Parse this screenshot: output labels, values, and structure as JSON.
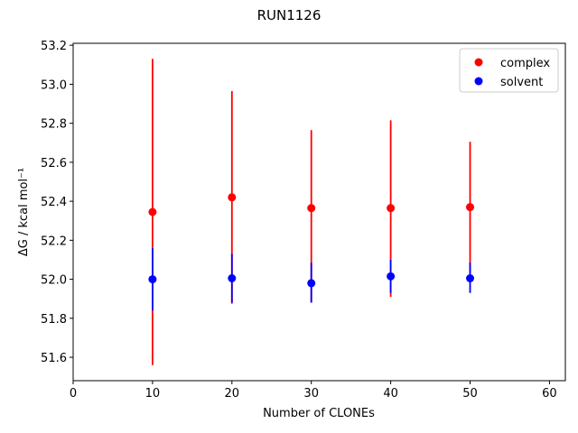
{
  "chart_data": {
    "type": "scatter",
    "title": "RUN1126",
    "xlabel": "Number of CLONEs",
    "ylabel": "ΔG / kcal mol⁻¹",
    "xlim": [
      0,
      62
    ],
    "ylim": [
      51.48,
      53.21
    ],
    "xticks": [
      0,
      10,
      20,
      30,
      40,
      50,
      60
    ],
    "yticks": [
      51.6,
      51.8,
      52.0,
      52.2,
      52.4,
      52.6,
      52.8,
      53.0,
      53.2
    ],
    "xtick_labels": [
      "0",
      "10",
      "20",
      "30",
      "40",
      "50",
      "60"
    ],
    "ytick_labels": [
      "51.6",
      "51.8",
      "52.0",
      "52.2",
      "52.4",
      "52.6",
      "52.8",
      "53.0",
      "53.2"
    ],
    "grid": false,
    "legend": {
      "location": "upper right",
      "entries": [
        "complex",
        "solvent"
      ]
    },
    "series": [
      {
        "name": "complex",
        "color": "#ff0000",
        "x": [
          10,
          20,
          30,
          40,
          50
        ],
        "y": [
          52.345,
          52.42,
          52.365,
          52.365,
          52.37
        ],
        "yerr_low": [
          51.56,
          51.875,
          51.88,
          51.91,
          52.03
        ],
        "yerr_high": [
          53.13,
          52.965,
          52.765,
          52.815,
          52.705
        ]
      },
      {
        "name": "solvent",
        "color": "#0000ff",
        "x": [
          10,
          20,
          30,
          40,
          50
        ],
        "y": [
          52.0,
          52.005,
          51.98,
          52.015,
          52.005
        ],
        "yerr_low": [
          51.84,
          51.88,
          51.88,
          51.93,
          51.93
        ],
        "yerr_high": [
          52.16,
          52.13,
          52.085,
          52.1,
          52.085
        ]
      }
    ]
  }
}
